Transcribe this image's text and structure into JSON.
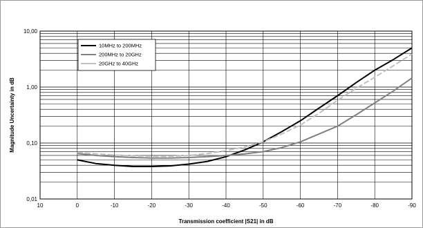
{
  "chart_data": {
    "type": "line",
    "title": "",
    "xlabel": "Transmission coefficient |S21| in dB",
    "ylabel": "Magnitude Uncertainty in dB",
    "x_ticks": [
      10,
      0,
      -10,
      -20,
      -30,
      -40,
      -50,
      -60,
      -70,
      -80,
      -90
    ],
    "x_tick_labels": [
      "10",
      "0",
      "-10",
      "-20",
      "-30",
      "-40",
      "-50",
      "-60",
      "-70",
      "-80",
      "-90"
    ],
    "xlim": [
      10,
      -90
    ],
    "y_scale": "log",
    "ylim": [
      0.01,
      10
    ],
    "y_ticks": [
      0.01,
      0.1,
      1,
      10
    ],
    "y_tick_labels": [
      "0,01",
      "0,10",
      "1,00",
      "10,00"
    ],
    "grid": true,
    "legend_position": "top-left",
    "series": [
      {
        "name": "10MHz to 200MHz",
        "color": "#000000",
        "dash": "solid",
        "x": [
          0,
          -5,
          -10,
          -15,
          -20,
          -25,
          -30,
          -35,
          -40,
          -45,
          -50,
          -55,
          -60,
          -65,
          -70,
          -75,
          -80,
          -85,
          -90
        ],
        "y": [
          0.05,
          0.043,
          0.04,
          0.038,
          0.038,
          0.039,
          0.042,
          0.047,
          0.057,
          0.075,
          0.105,
          0.16,
          0.25,
          0.42,
          0.7,
          1.2,
          2.0,
          3.1,
          5.0
        ]
      },
      {
        "name": "200MHz to 20GHz",
        "color": "#808080",
        "dash": "solid",
        "x": [
          0,
          -5,
          -10,
          -15,
          -20,
          -25,
          -30,
          -35,
          -40,
          -45,
          -50,
          -55,
          -60,
          -65,
          -70,
          -75,
          -80,
          -85,
          -90
        ],
        "y": [
          0.065,
          0.06,
          0.057,
          0.055,
          0.054,
          0.054,
          0.055,
          0.057,
          0.06,
          0.064,
          0.07,
          0.083,
          0.105,
          0.145,
          0.2,
          0.32,
          0.52,
          0.85,
          1.45
        ]
      },
      {
        "name": "20GHz to 40GHz",
        "color": "#c0c0c0",
        "dash": "dashed",
        "x": [
          0,
          -5,
          -10,
          -15,
          -20,
          -25,
          -30,
          -35,
          -40,
          -45,
          -50,
          -55,
          -60,
          -65,
          -70,
          -75,
          -80,
          -85,
          -90
        ],
        "y": [
          0.068,
          0.064,
          0.061,
          0.059,
          0.058,
          0.058,
          0.06,
          0.065,
          0.073,
          0.085,
          0.105,
          0.145,
          0.21,
          0.34,
          0.58,
          0.95,
          1.5,
          2.4,
          3.9
        ]
      }
    ]
  }
}
